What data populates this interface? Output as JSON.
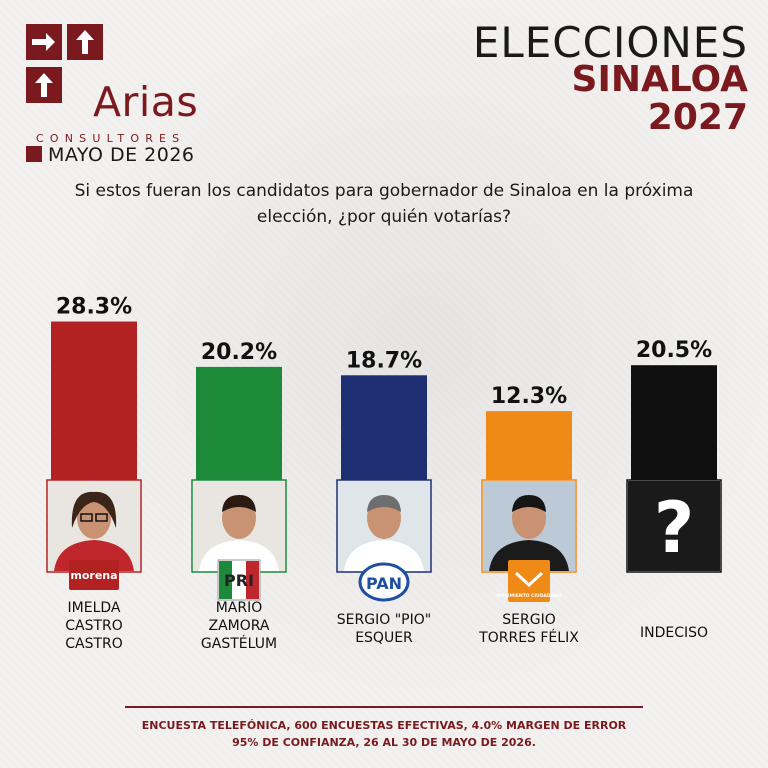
{
  "header": {
    "logo_brand": "Arias",
    "logo_sub": "CONSULTORES",
    "date": "MAYO DE 2026",
    "title_line1": "ELECCIONES",
    "title_line2": "SINALOA",
    "title_line3": "2027"
  },
  "question": "Si estos fueran los candidatos para gobernador de Sinaloa en la próxima elección, ¿por quién votarías?",
  "footer": {
    "line1": "ENCUESTA TELEFÓNICA, 600 ENCUESTAS EFECTIVAS, 4.0%  MARGEN DE ERROR",
    "line2": "95% DE CONFIANZA, 26 AL 30 DE MAYO DE 2026."
  },
  "colors": {
    "brand": "#7a1a1f",
    "morena": "#b22222",
    "pri": "#1d8a3a",
    "pan": "#1e2f73",
    "mc": "#f08a17",
    "indeciso": "#0f0f0f"
  },
  "chart_data": {
    "type": "bar",
    "title": "",
    "xlabel": "",
    "ylabel": "",
    "ylim": [
      0,
      30
    ],
    "categories": [
      "IMELDA CASTRO CASTRO",
      "MARIO ZAMORA GASTÉLUM",
      "SERGIO \"PIO\" ESQUER",
      "SERGIO TORRES FÉLIX",
      "INDECISO"
    ],
    "values": [
      28.3,
      20.2,
      18.7,
      12.3,
      20.5
    ],
    "value_labels": [
      "28.3%",
      "20.2%",
      "18.7%",
      "12.3%",
      "20.5%"
    ],
    "name_lines": [
      [
        "IMELDA",
        "CASTRO",
        "CASTRO"
      ],
      [
        "MARIO",
        "ZAMORA",
        "GASTÉLUM"
      ],
      [
        "SERGIO \"PIO\"",
        "ESQUER"
      ],
      [
        "SERGIO",
        "TORRES FÉLIX"
      ],
      [
        "INDECISO"
      ]
    ],
    "party_badges": [
      "morena",
      "PRI",
      "PAN",
      "MOVIMIENTO CIUDADANO",
      ""
    ],
    "bar_colors": [
      "#b22222",
      "#1d8a3a",
      "#1e2f73",
      "#f08a17",
      "#0f0f0f"
    ],
    "undecided_symbol": "?"
  }
}
